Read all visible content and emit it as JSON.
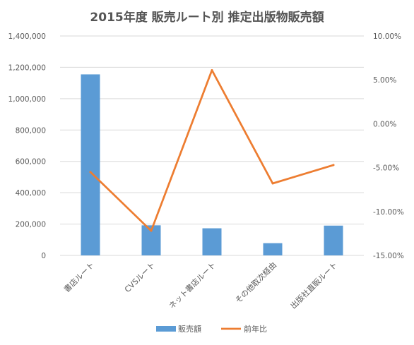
{
  "chart_data": {
    "type": "bar+line",
    "title": "2015年度  販売ルート別  推定出版物販売額",
    "categories": [
      "書店ルート",
      "CVSルート",
      "ネット書店ルート",
      "その他取次経由",
      "出版社直販ルート"
    ],
    "series": [
      {
        "name": "販売額",
        "type": "bar",
        "axis": "left",
        "color": "#5b9bd5",
        "values": [
          1155000,
          192000,
          173000,
          78000,
          190000
        ]
      },
      {
        "name": "前年比",
        "type": "line",
        "axis": "right",
        "color": "#ed7d31",
        "values": [
          -5.5,
          -12.2,
          6.1,
          -6.8,
          -4.7
        ]
      }
    ],
    "y_left": {
      "min": 0,
      "max": 1400000,
      "step": 200000,
      "tick_labels": [
        "0",
        "200,000",
        "400,000",
        "600,000",
        "800,000",
        "1,000,000",
        "1,200,000",
        "1,400,000"
      ]
    },
    "y_right": {
      "min": -15,
      "max": 10,
      "step": 5,
      "tick_labels": [
        "-15.00%",
        "-10.00%",
        "-5.00%",
        "0.00%",
        "5.00%",
        "10.00%"
      ]
    },
    "grid": true,
    "legend_position": "bottom"
  }
}
